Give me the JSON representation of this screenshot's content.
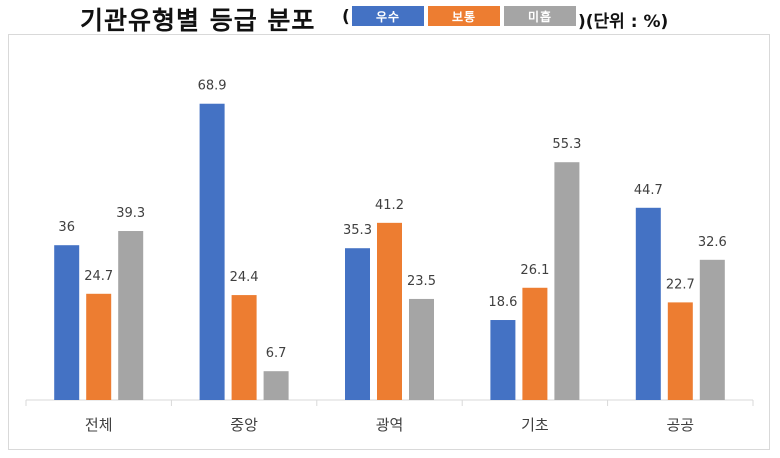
{
  "header": {
    "title": "기관유형별 등급 분포",
    "paren_open": "(",
    "paren_close": ")(단위 : %)"
  },
  "legend": [
    {
      "label": "우수",
      "color": "#4472C4"
    },
    {
      "label": "보통",
      "color": "#ED7D31"
    },
    {
      "label": "미흡",
      "color": "#A5A5A5"
    }
  ],
  "chart_data": {
    "type": "bar",
    "title": "기관유형별 등급 분포",
    "unit_note": "(단위 : %)",
    "categories": [
      "전체",
      "중앙",
      "광역",
      "기초",
      "공공"
    ],
    "series": [
      {
        "name": "우수",
        "color": "#4472C4",
        "values": [
          36,
          68.9,
          35.3,
          18.6,
          44.7
        ],
        "labels": [
          "36",
          "68.9",
          "35.3",
          "18.6",
          "44.7"
        ]
      },
      {
        "name": "보통",
        "color": "#ED7D31",
        "values": [
          24.7,
          24.4,
          41.2,
          26.1,
          22.7
        ],
        "labels": [
          "24.7",
          "24.4",
          "41.2",
          "26.1",
          "22.7"
        ]
      },
      {
        "name": "미흡",
        "color": "#A5A5A5",
        "values": [
          39.3,
          6.7,
          23.5,
          55.3,
          32.6
        ],
        "labels": [
          "39.3",
          "6.7",
          "23.5",
          "55.3",
          "32.6"
        ]
      }
    ],
    "ylim": [
      0,
      75
    ],
    "grid": false,
    "legend_position": "top (inline with title)",
    "data_labels": true
  }
}
